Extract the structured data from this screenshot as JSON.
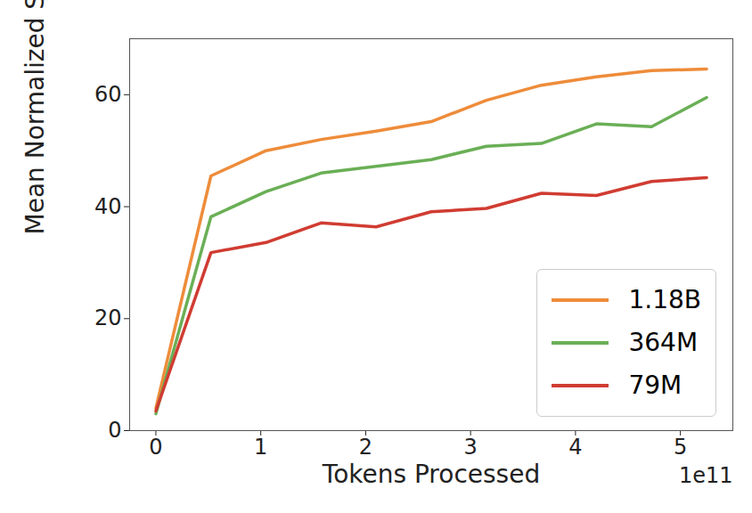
{
  "chart_data": {
    "type": "line",
    "x_label": "Tokens Processed",
    "y_label": "Mean Normalized Score (%)",
    "x_offset_label": "1e11",
    "x": [
      0,
      0.525,
      1.05,
      1.575,
      2.1,
      2.625,
      3.15,
      3.675,
      4.2,
      4.725,
      5.25
    ],
    "series": [
      {
        "name": "1.18B",
        "color": "#ee8c3a",
        "values": [
          4,
          45.5,
          50,
          52,
          53.5,
          55.2,
          59,
          61.7,
          63.2,
          64.3,
          64.6
        ]
      },
      {
        "name": "364M",
        "color": "#6aaf56",
        "values": [
          3,
          38.2,
          42.7,
          46,
          47.2,
          48.4,
          50.8,
          51.3,
          54.8,
          54.3,
          59.5
        ]
      },
      {
        "name": "79M",
        "color": "#d03c32",
        "values": [
          3.5,
          31.8,
          33.6,
          37.1,
          36.4,
          39.1,
          39.7,
          42.4,
          42.0,
          44.5,
          45.2
        ]
      }
    ],
    "xlim": [
      -0.25,
      5.5
    ],
    "ylim": [
      0,
      70
    ],
    "xticks": [
      0,
      1,
      2,
      3,
      4,
      5
    ],
    "yticks": [
      0,
      20,
      40,
      60
    ],
    "grid": false,
    "legend": "lower right"
  }
}
